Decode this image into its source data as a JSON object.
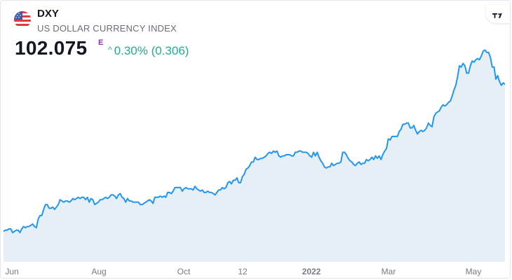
{
  "header": {
    "symbol": "DXY",
    "name": "US DOLLAR CURRENCY INDEX",
    "price": "102.075",
    "price_flag": "E",
    "change_arrow": "^",
    "change_text": "0.30% (0.306)",
    "flag_icon": "us-flag-icon",
    "logo_icon": "tradingview-logo-icon"
  },
  "colors": {
    "line": "#2196f3",
    "area": "#e6eff5",
    "positive": "#22ab94",
    "price_flag": "#9c27b0"
  },
  "chart_data": {
    "type": "area",
    "x_ticks": [
      {
        "label": "Jun",
        "bold": false
      },
      {
        "label": "Aug",
        "bold": false
      },
      {
        "label": "Oct",
        "bold": false
      },
      {
        "label": "12",
        "bold": false
      },
      {
        "label": "2022",
        "bold": true
      },
      {
        "label": "Mar",
        "bold": false
      },
      {
        "label": "May",
        "bold": false
      }
    ],
    "series": [
      {
        "values": [
          90.0,
          90.1,
          90.1,
          90.2,
          90.2,
          89.9,
          90.0,
          90.1,
          90.1,
          89.9,
          90.2,
          90.4,
          90.3,
          90.4,
          90.4,
          90.5,
          90.6,
          90.4,
          90.3,
          91.0,
          91.3,
          91.3,
          91.8,
          92.2,
          92.2,
          91.9,
          91.9,
          92.0,
          91.8,
          92.0,
          92.2,
          92.6,
          92.5,
          92.4,
          92.5,
          92.5,
          92.4,
          92.5,
          92.7,
          92.6,
          92.7,
          92.8,
          92.7,
          92.8,
          92.8,
          92.6,
          92.8,
          92.4,
          92.7,
          92.6,
          92.2,
          92.3,
          92.4,
          92.6,
          92.6,
          92.7,
          92.8,
          92.7,
          92.8,
          93.0,
          93.0,
          92.9,
          92.7,
          93.0,
          93.1,
          92.8,
          92.7,
          92.4,
          92.7,
          92.5,
          92.5,
          92.4,
          92.4,
          92.4,
          92.4,
          92.2,
          92.2,
          92.3,
          92.4,
          92.5,
          92.6,
          92.5,
          92.3,
          92.8,
          92.8,
          92.8,
          92.9,
          92.8,
          92.9,
          92.8,
          93.2,
          93.2,
          93.1,
          93.3,
          93.6,
          93.6,
          93.6,
          93.6,
          93.3,
          93.5,
          93.6,
          93.5,
          93.5,
          93.5,
          93.4,
          93.7,
          93.5,
          93.4,
          93.3,
          93.4,
          93.2,
          93.2,
          93.3,
          93.2,
          93.2,
          93.1,
          93.0,
          93.2,
          93.4,
          93.4,
          93.6,
          93.5,
          93.6,
          94.0,
          94.1,
          93.9,
          94.2,
          94.2,
          94.4,
          94.0,
          94.0,
          94.5,
          94.7,
          95.1,
          95.2,
          95.4,
          95.7,
          95.7,
          96.1,
          95.9,
          95.9,
          96.0,
          96.0,
          96.1,
          96.2,
          96.4,
          96.5,
          96.4,
          96.6,
          96.5,
          96.6,
          96.2,
          96.1,
          96.2,
          96.2,
          96.3,
          96.3,
          96.3,
          96.2,
          96.2,
          96.5,
          96.5,
          96.6,
          96.6,
          96.5,
          96.5,
          96.5,
          96.4,
          96.2,
          96.1,
          96.5,
          96.2,
          96.5,
          96.1,
          95.8,
          95.6,
          95.3,
          95.2,
          95.3,
          95.3,
          95.6,
          95.4,
          95.5,
          95.6,
          95.6,
          95.7,
          96.5,
          96.5,
          96.3,
          96.0,
          95.8,
          95.7,
          95.5,
          95.4,
          95.6,
          95.7,
          95.5,
          95.6,
          95.6,
          95.9,
          95.8,
          95.9,
          96.1,
          95.9,
          96.2,
          96.0,
          96.2,
          95.9,
          96.3,
          96.6,
          96.8,
          97.6,
          97.5,
          97.8,
          97.8,
          97.8,
          97.8,
          98.2,
          98.4,
          98.8,
          98.8,
          98.9,
          98.9,
          98.5,
          98.5,
          98.7,
          98.3,
          98.0,
          98.2,
          98.3,
          98.2,
          98.3,
          98.5,
          98.9,
          98.7,
          98.6,
          99.4,
          99.7,
          99.8,
          99.9,
          100.2,
          100.4,
          100.3,
          100.4,
          100.6,
          100.7,
          101.1,
          101.6,
          102.0,
          102.7,
          103.6,
          103.5,
          103.8,
          103.6,
          103.0,
          103.0,
          103.6,
          104.0,
          103.9,
          104.1,
          104.2,
          104.1,
          104.4,
          104.8,
          104.9,
          104.7,
          104.7,
          104.3,
          103.5,
          103.5,
          102.5,
          102.8,
          102.3,
          102.0,
          102.2,
          102.075
        ]
      }
    ],
    "ylim": [
      87.5,
      105.5
    ],
    "grid": false
  }
}
